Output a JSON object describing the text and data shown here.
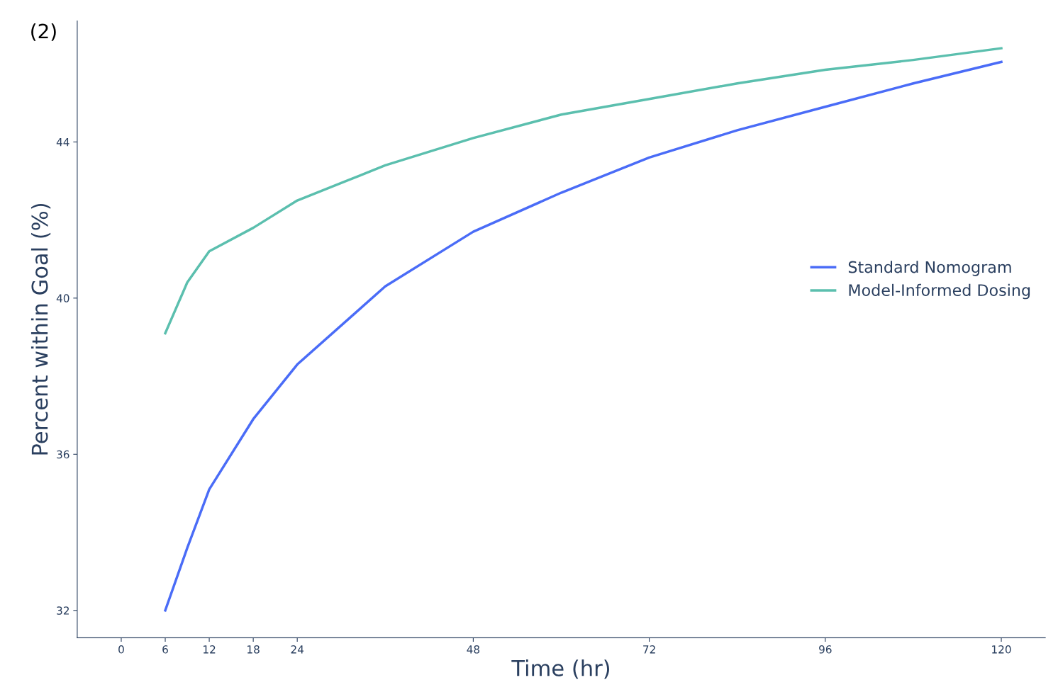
{
  "chart_data": {
    "type": "line",
    "xlabel": "Time (hr)",
    "ylabel": "Percent within Goal (%)",
    "annotations": [
      "(2)"
    ],
    "xlim": [
      -6,
      126
    ],
    "xticks": [
      0,
      6,
      12,
      18,
      24,
      48,
      72,
      96,
      120
    ],
    "ylim": [
      31.3,
      47.1
    ],
    "yticks": [
      32,
      36,
      40,
      44
    ],
    "grid": false,
    "legend": "right",
    "marker": "none",
    "line_style": "solid",
    "series": [
      {
        "name": "Standard Nomogram",
        "color": "#4a6cf7",
        "x": [
          6,
          9,
          12,
          18,
          24,
          36,
          48,
          60,
          72,
          84,
          96,
          108,
          120
        ],
        "values": [
          32.0,
          33.6,
          35.1,
          36.9,
          38.3,
          40.3,
          41.7,
          42.7,
          43.6,
          44.3,
          44.9,
          45.5,
          46.05
        ]
      },
      {
        "name": "Model-Informed Dosing",
        "color": "#5bbfae",
        "x": [
          6,
          9,
          12,
          18,
          24,
          36,
          48,
          60,
          72,
          84,
          96,
          108,
          120
        ],
        "values": [
          39.1,
          40.4,
          41.2,
          41.8,
          42.5,
          43.4,
          44.1,
          44.7,
          45.1,
          45.5,
          45.85,
          46.1,
          46.4
        ]
      }
    ]
  }
}
